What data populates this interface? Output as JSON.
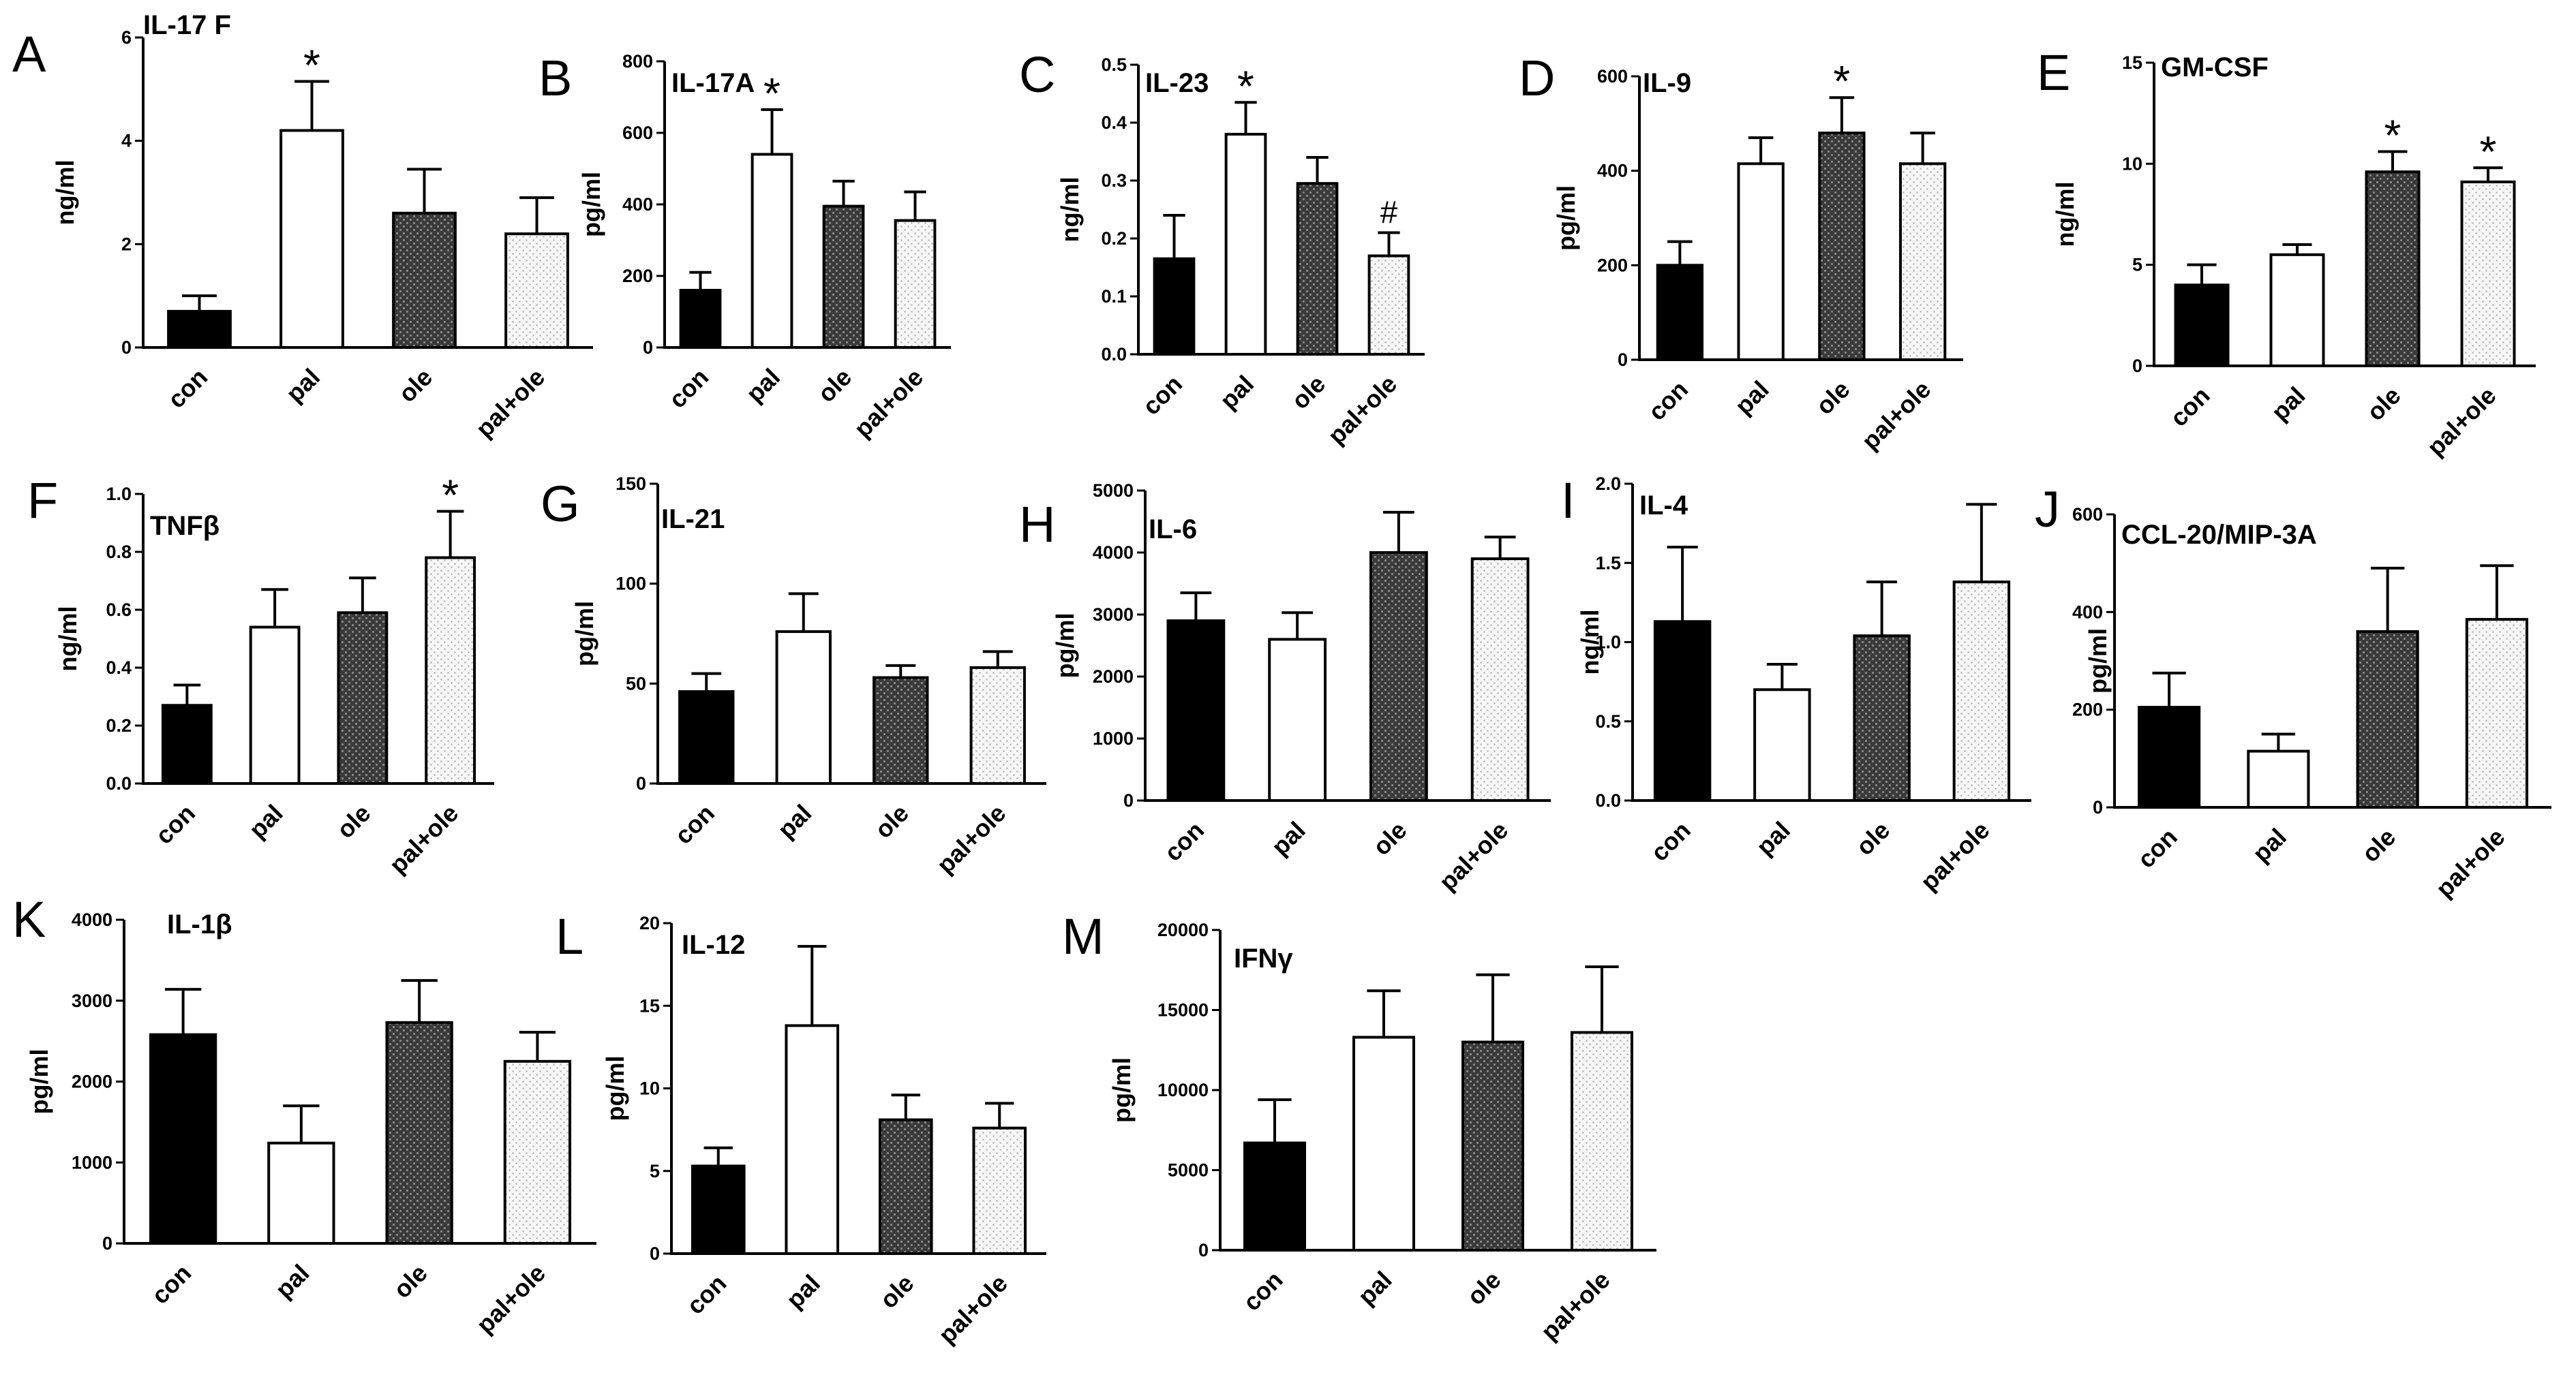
{
  "figure": {
    "styles": {
      "con": {
        "fill": "#000000"
      },
      "pal": {
        "fill": "#ffffff"
      },
      "ole": {
        "fill": "#4a4a4a"
      },
      "pal+ole": {
        "fill": "#efefef"
      }
    }
  },
  "chart_data": [
    {
      "label": "A",
      "title": "IL-17 F",
      "type": "bar",
      "ylabel": "ng/ml",
      "categories": [
        "con",
        "pal",
        "ole",
        "pal+ole"
      ],
      "values": [
        0.7,
        4.2,
        2.6,
        2.2
      ],
      "errors": [
        0.3,
        0.95,
        0.85,
        0.7
      ],
      "ylim": [
        0,
        6
      ],
      "yticks": [
        "0",
        "2",
        "4",
        "6"
      ],
      "marks": [
        "",
        "*",
        "",
        ""
      ]
    },
    {
      "label": "B",
      "title": "IL-17A",
      "type": "bar",
      "ylabel": "pg/ml",
      "categories": [
        "con",
        "pal",
        "ole",
        "pal+ole"
      ],
      "values": [
        160,
        540,
        395,
        355
      ],
      "errors": [
        50,
        125,
        70,
        80
      ],
      "ylim": [
        0,
        800
      ],
      "yticks": [
        "0",
        "200",
        "400",
        "600",
        "800"
      ],
      "marks": [
        "",
        "*",
        "",
        ""
      ]
    },
    {
      "label": "C",
      "title": "IL-23",
      "type": "bar",
      "ylabel": "ng/ml",
      "categories": [
        "con",
        "pal",
        "ole",
        "pal+ole"
      ],
      "values": [
        0.165,
        0.38,
        0.295,
        0.17
      ],
      "errors": [
        0.075,
        0.055,
        0.045,
        0.04
      ],
      "ylim": [
        0,
        0.5
      ],
      "yticks": [
        "0.0",
        "0.1",
        "0.2",
        "0.3",
        "0.4",
        "0.5"
      ],
      "marks": [
        "",
        "*",
        "",
        "#"
      ]
    },
    {
      "label": "D",
      "title": "IL-9",
      "type": "bar",
      "ylabel": "pg/ml",
      "categories": [
        "con",
        "pal",
        "ole",
        "pal+ole"
      ],
      "values": [
        200,
        415,
        480,
        415
      ],
      "errors": [
        50,
        55,
        75,
        65
      ],
      "ylim": [
        0,
        600
      ],
      "yticks": [
        "0",
        "200",
        "400",
        "600"
      ],
      "marks": [
        "",
        "",
        "*",
        ""
      ]
    },
    {
      "label": "E",
      "title": "GM-CSF",
      "type": "bar",
      "ylabel": "ng/ml",
      "categories": [
        "con",
        "pal",
        "ole",
        "pal+ole"
      ],
      "values": [
        4.0,
        5.5,
        9.6,
        9.1
      ],
      "errors": [
        1.0,
        0.5,
        1.0,
        0.7
      ],
      "ylim": [
        0,
        15
      ],
      "yticks": [
        "0",
        "5",
        "10",
        "15"
      ],
      "marks": [
        "",
        "",
        "*",
        "*"
      ]
    },
    {
      "label": "F",
      "title": "TNFβ",
      "type": "bar",
      "ylabel": "ng/ml",
      "categories": [
        "con",
        "pal",
        "ole",
        "pal+ole"
      ],
      "values": [
        0.27,
        0.54,
        0.59,
        0.78
      ],
      "errors": [
        0.07,
        0.13,
        0.12,
        0.16
      ],
      "ylim": [
        0,
        1.0
      ],
      "yticks": [
        "0.0",
        "0.2",
        "0.4",
        "0.6",
        "0.8",
        "1.0"
      ],
      "marks": [
        "",
        "",
        "",
        "*"
      ]
    },
    {
      "label": "G",
      "title": "IL-21",
      "type": "bar",
      "ylabel": "pg/ml",
      "categories": [
        "con",
        "pal",
        "ole",
        "pal+ole"
      ],
      "values": [
        46,
        76,
        53,
        58
      ],
      "errors": [
        9,
        19,
        6,
        8
      ],
      "ylim": [
        0,
        150
      ],
      "yticks": [
        "0",
        "50",
        "100",
        "150"
      ],
      "marks": [
        "",
        "",
        "",
        ""
      ]
    },
    {
      "label": "H",
      "title": "IL-6",
      "type": "bar",
      "ylabel": "pg/ml",
      "categories": [
        "con",
        "pal",
        "ole",
        "pal+ole"
      ],
      "values": [
        2900,
        2600,
        4000,
        3900
      ],
      "errors": [
        450,
        430,
        650,
        350
      ],
      "ylim": [
        0,
        5000
      ],
      "yticks": [
        "0",
        "1000",
        "2000",
        "3000",
        "4000",
        "5000"
      ],
      "marks": [
        "",
        "",
        "",
        ""
      ]
    },
    {
      "label": "I",
      "title": "IL-4",
      "type": "bar",
      "ylabel": "ng/ml",
      "categories": [
        "con",
        "pal",
        "ole",
        "pal+ole"
      ],
      "values": [
        1.13,
        0.7,
        1.04,
        1.38
      ],
      "errors": [
        0.47,
        0.16,
        0.34,
        0.49
      ],
      "ylim": [
        0,
        2.0
      ],
      "yticks": [
        "0.0",
        "0.5",
        "1.0",
        "1.5",
        "2.0"
      ],
      "marks": [
        "",
        "",
        "",
        ""
      ]
    },
    {
      "label": "J",
      "title": "CCL-20/MIP-3A",
      "type": "bar",
      "ylabel": "pg/ml",
      "categories": [
        "con",
        "pal",
        "ole",
        "pal+ole"
      ],
      "values": [
        205,
        115,
        360,
        385
      ],
      "errors": [
        70,
        35,
        130,
        110
      ],
      "ylim": [
        0,
        600
      ],
      "yticks": [
        "0",
        "200",
        "400",
        "600"
      ],
      "marks": [
        "",
        "",
        "",
        ""
      ]
    },
    {
      "label": "K",
      "title": "IL-1β",
      "type": "bar",
      "ylabel": "pg/ml",
      "categories": [
        "con",
        "pal",
        "ole",
        "pal+ole"
      ],
      "values": [
        2580,
        1240,
        2730,
        2250
      ],
      "errors": [
        560,
        460,
        520,
        360
      ],
      "ylim": [
        0,
        4000
      ],
      "yticks": [
        "0",
        "1000",
        "2000",
        "3000",
        "4000"
      ],
      "marks": [
        "",
        "",
        "",
        ""
      ]
    },
    {
      "label": "L",
      "title": "IL-12",
      "type": "bar",
      "ylabel": "pg/ml",
      "categories": [
        "con",
        "pal",
        "ole",
        "pal+ole"
      ],
      "values": [
        5.3,
        13.8,
        8.1,
        7.6
      ],
      "errors": [
        1.1,
        4.8,
        1.5,
        1.5
      ],
      "ylim": [
        0,
        20
      ],
      "yticks": [
        "0",
        "5",
        "10",
        "15",
        "20"
      ],
      "marks": [
        "",
        "",
        "",
        ""
      ]
    },
    {
      "label": "M",
      "title": "IFNγ",
      "type": "bar",
      "ylabel": "pg/ml",
      "categories": [
        "con",
        "pal",
        "ole",
        "pal+ole"
      ],
      "values": [
        6700,
        13300,
        13000,
        13600
      ],
      "errors": [
        2700,
        2900,
        4200,
        4100
      ],
      "ylim": [
        0,
        20000
      ],
      "yticks": [
        "0",
        "5000",
        "10000",
        "15000",
        "20000"
      ],
      "marks": [
        "",
        "",
        "",
        ""
      ]
    }
  ]
}
